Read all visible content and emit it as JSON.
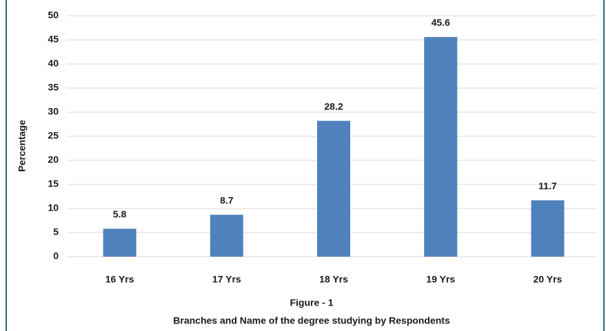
{
  "chart_data": {
    "type": "bar",
    "categories": [
      "16 Yrs",
      "17 Yrs",
      "18 Yrs",
      "19 Yrs",
      "20 Yrs"
    ],
    "values": [
      5.8,
      8.7,
      28.2,
      45.6,
      11.7
    ],
    "color": "#4f81bd",
    "ylabel": "Percentage",
    "xlabel": "Figure - 1",
    "caption": "Branches and Name of the degree studying by Respondents",
    "ylim": [
      0,
      50
    ],
    "yticks": [
      0,
      5,
      10,
      15,
      20,
      25,
      30,
      35,
      40,
      45,
      50
    ],
    "grid": true,
    "data_labels": true
  }
}
